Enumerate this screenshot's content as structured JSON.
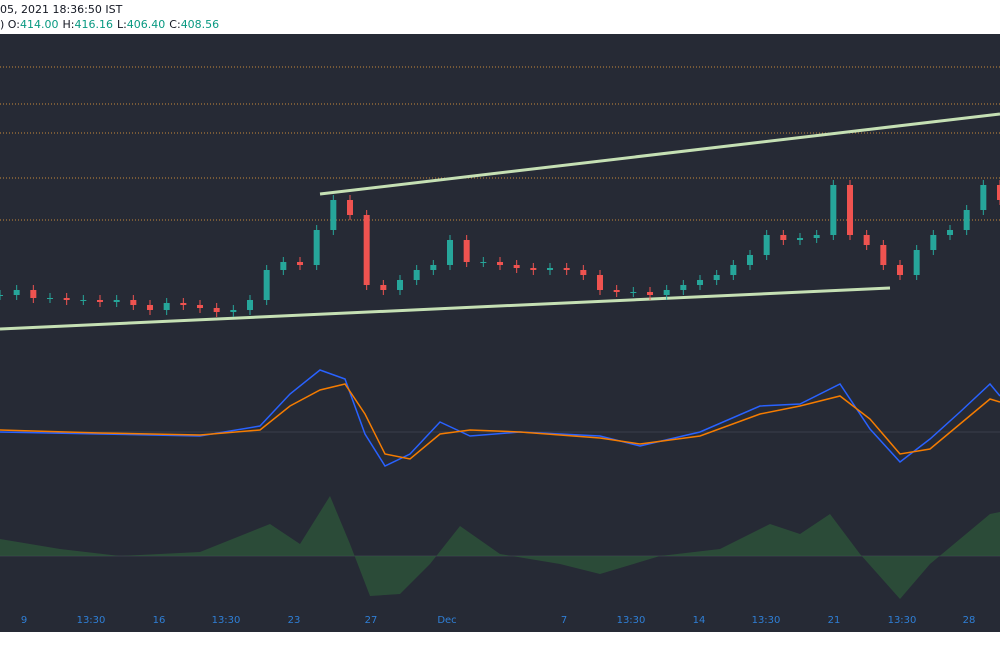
{
  "header": {
    "datetime": "05, 2021 18:36:50 IST",
    "prefix": ")",
    "ohlc": [
      {
        "label": "O:",
        "value": "414.00"
      },
      {
        "label": "H:",
        "value": "416.16"
      },
      {
        "label": "L:",
        "value": "406.40"
      },
      {
        "label": "C:",
        "value": "408.56"
      }
    ]
  },
  "x_axis": {
    "labels": [
      "9",
      "13:30",
      "16",
      "13:30",
      "23",
      "27",
      "Dec",
      "7",
      "13:30",
      "14",
      "13:30",
      "21",
      "13:30",
      "28"
    ]
  },
  "candles": {
    "closes": [
      380.06,
      381.56,
      379.16,
      379.16,
      378.56,
      378.56,
      377.96,
      378.56,
      377.06,
      375.56,
      377.66,
      377.06,
      376.16,
      374.96,
      375.56,
      378.56,
      387.56,
      389.96,
      389.06,
      399.56,
      408.56,
      404.06,
      383.06,
      381.56,
      384.56,
      387.56,
      389.06,
      396.56,
      389.96,
      389.96,
      389.06,
      388.16,
      387.56,
      388.16,
      387.56,
      386.06,
      381.56,
      380.96,
      380.96,
      380.06,
      381.56,
      383.06,
      384.56,
      386.06,
      389.06,
      392.06,
      398.06,
      396.56,
      397.16,
      398.06,
      413.06,
      398.06,
      395.06,
      389.06,
      386.06,
      393.56,
      398.06,
      399.56,
      405.56,
      413.06,
      408.56
    ]
  }
}
